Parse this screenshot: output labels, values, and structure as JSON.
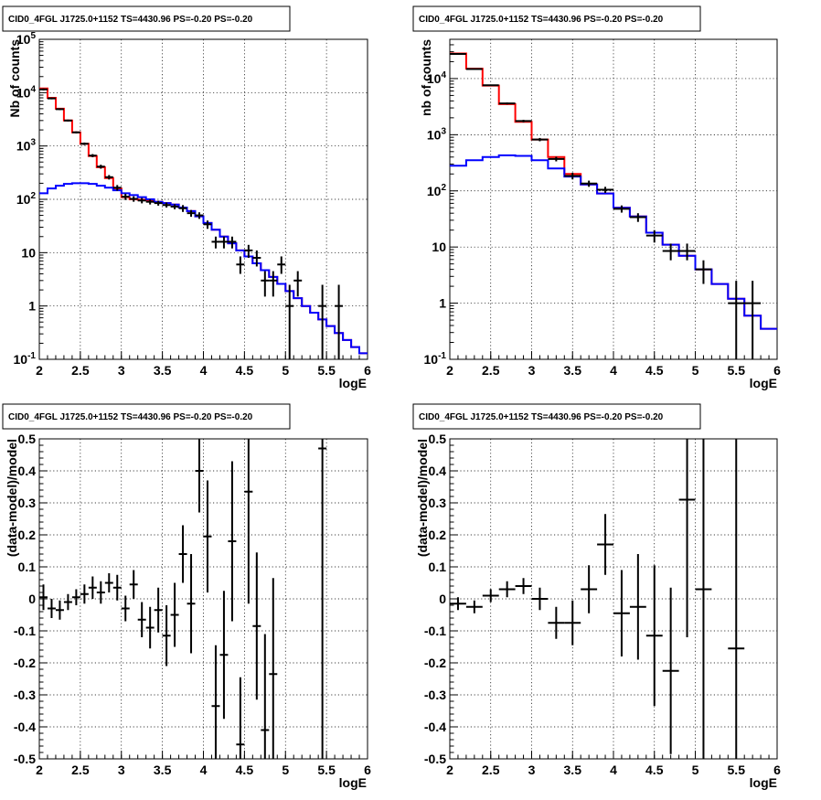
{
  "chart_data": [
    {
      "type": "step-histogram",
      "title": "CID0_4FGL J1725.0+1152 TS=4430.96 PS=-0.20 PS=-0.20",
      "xlabel": "logE",
      "ylabel": "Nb of counts",
      "xlim": [
        2,
        6
      ],
      "ylim": [
        0.1,
        100000
      ],
      "yscale": "log",
      "grid": true,
      "x_ticks": [
        "2",
        "2.5",
        "3",
        "3.5",
        "4",
        "4.5",
        "5",
        "5.5",
        "6"
      ],
      "y_ticks": [
        {
          "v": 0.1,
          "t": "10",
          "sup": "-1"
        },
        {
          "v": 1,
          "t": "1"
        },
        {
          "v": 10,
          "t": "10"
        },
        {
          "v": 100,
          "t": "10",
          "sup": "2"
        },
        {
          "v": 1000,
          "t": "10",
          "sup": "3"
        },
        {
          "v": 10000,
          "t": "10",
          "sup": "4"
        },
        {
          "v": 100000,
          "t": "10",
          "sup": "5"
        }
      ],
      "edges": [
        2.0,
        2.1,
        2.2,
        2.3,
        2.4,
        2.5,
        2.6,
        2.7,
        2.8,
        2.9,
        3.0,
        3.1,
        3.2,
        3.3,
        3.4,
        3.5,
        3.6,
        3.7,
        3.8,
        3.9,
        4.0,
        4.1,
        4.2,
        4.3,
        4.4,
        4.5,
        4.6,
        4.7,
        4.8,
        4.9,
        5.0,
        5.1,
        5.2,
        5.3,
        5.4,
        5.5,
        5.6,
        5.7,
        5.8,
        5.9,
        6.0
      ],
      "series": [
        {
          "color": "#ff0000",
          "values": [
            12000,
            8000,
            5000,
            3000,
            1800,
            1100,
            650,
            400,
            250,
            160,
            110,
            100,
            98,
            96,
            90,
            85,
            80,
            70,
            60,
            48,
            36,
            27,
            20,
            15,
            11,
            8.5,
            6.3,
            4.7,
            3.5,
            2.6,
            1.9,
            1.4,
            1.0,
            0.75,
            0.56,
            0.42,
            0.31,
            0.23,
            0.17,
            0.13
          ]
        },
        {
          "color": "#0000ff",
          "values": [
            130,
            160,
            180,
            195,
            200,
            200,
            195,
            180,
            165,
            148,
            130,
            120,
            110,
            100,
            90,
            85,
            80,
            70,
            60,
            48,
            36,
            27,
            20,
            15,
            11,
            8.5,
            6.3,
            4.7,
            3.5,
            2.6,
            1.9,
            1.4,
            1.0,
            0.75,
            0.56,
            0.42,
            0.31,
            0.23,
            0.17,
            0.13
          ]
        }
      ],
      "data_points": [
        {
          "x": 2.05,
          "y": 11500,
          "lo": 11000,
          "hi": 12000
        },
        {
          "x": 2.15,
          "y": 7800,
          "lo": 7500,
          "hi": 8100
        },
        {
          "x": 2.25,
          "y": 4900,
          "lo": 4700,
          "hi": 5100
        },
        {
          "x": 2.35,
          "y": 3000,
          "lo": 2880,
          "hi": 3120
        },
        {
          "x": 2.45,
          "y": 1800,
          "lo": 1720,
          "hi": 1880
        },
        {
          "x": 2.55,
          "y": 1100,
          "lo": 1040,
          "hi": 1160
        },
        {
          "x": 2.65,
          "y": 660,
          "lo": 615,
          "hi": 705
        },
        {
          "x": 2.75,
          "y": 410,
          "lo": 375,
          "hi": 445
        },
        {
          "x": 2.85,
          "y": 260,
          "lo": 235,
          "hi": 285
        },
        {
          "x": 2.95,
          "y": 165,
          "lo": 145,
          "hi": 185
        },
        {
          "x": 3.05,
          "y": 112,
          "lo": 97,
          "hi": 127
        },
        {
          "x": 3.15,
          "y": 102,
          "lo": 90,
          "hi": 114
        },
        {
          "x": 3.25,
          "y": 95,
          "lo": 84,
          "hi": 106
        },
        {
          "x": 3.35,
          "y": 90,
          "lo": 80,
          "hi": 100
        },
        {
          "x": 3.45,
          "y": 85,
          "lo": 76,
          "hi": 94
        },
        {
          "x": 3.55,
          "y": 78,
          "lo": 70,
          "hi": 87
        },
        {
          "x": 3.65,
          "y": 73,
          "lo": 65,
          "hi": 81
        },
        {
          "x": 3.75,
          "y": 68,
          "lo": 58,
          "hi": 78
        },
        {
          "x": 3.85,
          "y": 55,
          "lo": 47,
          "hi": 63
        },
        {
          "x": 3.95,
          "y": 50,
          "lo": 43,
          "hi": 57
        },
        {
          "x": 4.05,
          "y": 34,
          "lo": 28,
          "hi": 40
        },
        {
          "x": 4.15,
          "y": 16,
          "lo": 12,
          "hi": 20
        },
        {
          "x": 4.25,
          "y": 16,
          "lo": 12,
          "hi": 20
        },
        {
          "x": 4.35,
          "y": 16,
          "lo": 12,
          "hi": 20
        },
        {
          "x": 4.45,
          "y": 6,
          "lo": 4,
          "hi": 8.5
        },
        {
          "x": 4.55,
          "y": 11,
          "lo": 8,
          "hi": 14
        },
        {
          "x": 4.65,
          "y": 8,
          "lo": 5.5,
          "hi": 11
        },
        {
          "x": 4.75,
          "y": 3,
          "lo": 1.5,
          "hi": 4.5
        },
        {
          "x": 4.85,
          "y": 3,
          "lo": 1.5,
          "hi": 4.5
        },
        {
          "x": 4.95,
          "y": 6,
          "lo": 4,
          "hi": 8.5
        },
        {
          "x": 5.05,
          "y": 1,
          "lo": 0.1,
          "hi": 2.5
        },
        {
          "x": 5.15,
          "y": 3,
          "lo": 1.5,
          "hi": 4.5
        },
        {
          "x": 5.45,
          "y": 1,
          "lo": 0.1,
          "hi": 2.5
        },
        {
          "x": 5.65,
          "y": 1,
          "lo": 0.1,
          "hi": 2.5
        }
      ]
    },
    {
      "type": "step-histogram",
      "title": "CID0_4FGL J1725.0+1152 TS=4430.96 PS=-0.20 PS=-0.20",
      "xlabel": "logE",
      "ylabel": "nb of counts",
      "xlim": [
        2,
        6
      ],
      "ylim": [
        0.1,
        50000
      ],
      "yscale": "log",
      "grid": true,
      "x_ticks": [
        "2",
        "2.5",
        "3",
        "3.5",
        "4",
        "4.5",
        "5",
        "5.5",
        "6"
      ],
      "y_ticks": [
        {
          "v": 0.1,
          "t": "10",
          "sup": "-1"
        },
        {
          "v": 1,
          "t": "1"
        },
        {
          "v": 10,
          "t": "10"
        },
        {
          "v": 100,
          "t": "10",
          "sup": "2"
        },
        {
          "v": 1000,
          "t": "10",
          "sup": "3"
        },
        {
          "v": 10000,
          "t": "10",
          "sup": "4"
        }
      ],
      "edges": [
        2.0,
        2.2,
        2.4,
        2.6,
        2.8,
        3.0,
        3.2,
        3.4,
        3.6,
        3.8,
        4.0,
        4.2,
        4.4,
        4.6,
        4.8,
        5.0,
        5.2,
        5.4,
        5.6,
        5.8,
        6.0
      ],
      "series": [
        {
          "color": "#ff0000",
          "values": [
            28000,
            15000,
            7500,
            3500,
            1700,
            820,
            400,
            200,
            130,
            90,
            50,
            35,
            18,
            11,
            7,
            4,
            2.2,
            1.2,
            0.6,
            0.35
          ]
        },
        {
          "color": "#0000ff",
          "values": [
            280,
            350,
            400,
            430,
            420,
            350,
            250,
            180,
            130,
            90,
            50,
            35,
            18,
            11,
            7,
            4,
            2.2,
            1.2,
            0.6,
            0.35
          ]
        }
      ],
      "data_points": [
        {
          "x": 2.1,
          "y": 27500,
          "lo": 27000,
          "hi": 28000
        },
        {
          "x": 2.3,
          "y": 14800,
          "lo": 14500,
          "hi": 15100
        },
        {
          "x": 2.5,
          "y": 7600,
          "lo": 7400,
          "hi": 7800
        },
        {
          "x": 2.7,
          "y": 3600,
          "lo": 3450,
          "hi": 3750
        },
        {
          "x": 2.9,
          "y": 1750,
          "lo": 1660,
          "hi": 1840
        },
        {
          "x": 3.1,
          "y": 820,
          "lo": 765,
          "hi": 875
        },
        {
          "x": 3.3,
          "y": 370,
          "lo": 335,
          "hi": 405
        },
        {
          "x": 3.5,
          "y": 185,
          "lo": 160,
          "hi": 210
        },
        {
          "x": 3.7,
          "y": 135,
          "lo": 118,
          "hi": 152
        },
        {
          "x": 3.9,
          "y": 105,
          "lo": 92,
          "hi": 118
        },
        {
          "x": 4.1,
          "y": 48,
          "lo": 41,
          "hi": 55
        },
        {
          "x": 4.3,
          "y": 34,
          "lo": 28,
          "hi": 40
        },
        {
          "x": 4.5,
          "y": 16,
          "lo": 12,
          "hi": 20
        },
        {
          "x": 4.7,
          "y": 8.5,
          "lo": 5.8,
          "hi": 11.5
        },
        {
          "x": 4.9,
          "y": 8.5,
          "lo": 5.8,
          "hi": 11.5
        },
        {
          "x": 5.1,
          "y": 4,
          "lo": 2.2,
          "hi": 5.8
        },
        {
          "x": 5.5,
          "y": 1,
          "lo": 0.1,
          "hi": 2.5
        },
        {
          "x": 5.7,
          "y": 1,
          "lo": 0.1,
          "hi": 2.5
        }
      ]
    },
    {
      "type": "errorbar",
      "title": "CID0_4FGL J1725.0+1152 TS=4430.96 PS=-0.20 PS=-0.20",
      "xlabel": "logE",
      "ylabel": "(data-model)/model",
      "xlim": [
        2,
        6
      ],
      "ylim": [
        -0.5,
        0.5
      ],
      "grid": true,
      "x_ticks": [
        "2",
        "2.5",
        "3",
        "3.5",
        "4",
        "4.5",
        "5",
        "5.5",
        "6"
      ],
      "y_ticks": [
        "-0.5",
        "-0.4",
        "-0.3",
        "-0.2",
        "-0.1",
        "0",
        "0.1",
        "0.2",
        "0.3",
        "0.4",
        "0.5"
      ],
      "half_width": 0.05,
      "data_points": [
        {
          "x": 2.05,
          "y": 0.005,
          "err": 0.04
        },
        {
          "x": 2.15,
          "y": -0.03,
          "err": 0.03
        },
        {
          "x": 2.25,
          "y": -0.035,
          "err": 0.03
        },
        {
          "x": 2.35,
          "y": -0.01,
          "err": 0.025
        },
        {
          "x": 2.45,
          "y": 0.005,
          "err": 0.025
        },
        {
          "x": 2.55,
          "y": 0.015,
          "err": 0.03
        },
        {
          "x": 2.65,
          "y": 0.035,
          "err": 0.035
        },
        {
          "x": 2.75,
          "y": 0.02,
          "err": 0.035
        },
        {
          "x": 2.85,
          "y": 0.05,
          "err": 0.03
        },
        {
          "x": 2.95,
          "y": 0.035,
          "err": 0.04
        },
        {
          "x": 3.05,
          "y": -0.03,
          "err": 0.04
        },
        {
          "x": 3.15,
          "y": 0.045,
          "err": 0.045
        },
        {
          "x": 3.25,
          "y": -0.065,
          "err": 0.055
        },
        {
          "x": 3.35,
          "y": -0.09,
          "err": 0.065
        },
        {
          "x": 3.45,
          "y": -0.035,
          "err": 0.07
        },
        {
          "x": 3.55,
          "y": -0.115,
          "err": 0.095
        },
        {
          "x": 3.65,
          "y": -0.05,
          "err": 0.1
        },
        {
          "x": 3.75,
          "y": 0.14,
          "err": 0.09
        },
        {
          "x": 3.85,
          "y": -0.015,
          "err": 0.155
        },
        {
          "x": 3.95,
          "y": 0.4,
          "err": 0.13
        },
        {
          "x": 4.05,
          "y": 0.195,
          "err": 0.175
        },
        {
          "x": 4.15,
          "y": -0.335,
          "err": 0.19
        },
        {
          "x": 4.25,
          "y": -0.175,
          "err": 0.2
        },
        {
          "x": 4.35,
          "y": 0.18,
          "err": 0.25
        },
        {
          "x": 4.45,
          "y": -0.455,
          "err": 0.21
        },
        {
          "x": 4.55,
          "y": 0.335,
          "err": 0.35
        },
        {
          "x": 4.65,
          "y": -0.085,
          "err": 0.23
        },
        {
          "x": 4.75,
          "y": -0.41,
          "err": 0.3
        },
        {
          "x": 4.85,
          "y": -0.235,
          "err": 0.3
        },
        {
          "x": 5.45,
          "y": 0.47,
          "err": 1.0
        }
      ]
    },
    {
      "type": "errorbar",
      "title": "CID0_4FGL J1725.0+1152 TS=4430.96 PS=-0.20 PS=-0.20",
      "xlabel": "logE",
      "ylabel": "(data-model)/model",
      "xlim": [
        2,
        6
      ],
      "ylim": [
        -0.5,
        0.5
      ],
      "grid": true,
      "x_ticks": [
        "2",
        "2.5",
        "3",
        "3.5",
        "4",
        "4.5",
        "5",
        "5.5",
        "6"
      ],
      "y_ticks": [
        "-0.5",
        "-0.4",
        "-0.3",
        "-0.2",
        "-0.1",
        "0",
        "0.1",
        "0.2",
        "0.3",
        "0.4",
        "0.5"
      ],
      "half_width": 0.1,
      "data_points": [
        {
          "x": 2.1,
          "y": -0.015,
          "err": 0.02
        },
        {
          "x": 2.3,
          "y": -0.025,
          "err": 0.02
        },
        {
          "x": 2.5,
          "y": 0.01,
          "err": 0.02
        },
        {
          "x": 2.7,
          "y": 0.03,
          "err": 0.025
        },
        {
          "x": 2.9,
          "y": 0.04,
          "err": 0.025
        },
        {
          "x": 3.1,
          "y": 0.0,
          "err": 0.035
        },
        {
          "x": 3.3,
          "y": -0.075,
          "err": 0.05
        },
        {
          "x": 3.5,
          "y": -0.075,
          "err": 0.07
        },
        {
          "x": 3.7,
          "y": 0.03,
          "err": 0.075
        },
        {
          "x": 3.9,
          "y": 0.17,
          "err": 0.095
        },
        {
          "x": 4.1,
          "y": -0.045,
          "err": 0.135
        },
        {
          "x": 4.3,
          "y": -0.025,
          "err": 0.165
        },
        {
          "x": 4.5,
          "y": -0.115,
          "err": 0.22
        },
        {
          "x": 4.7,
          "y": -0.225,
          "err": 0.26
        },
        {
          "x": 4.9,
          "y": 0.31,
          "err": 0.43
        },
        {
          "x": 5.1,
          "y": 0.03,
          "err": 0.9
        },
        {
          "x": 5.5,
          "y": -0.155,
          "err": 1.0
        }
      ]
    }
  ]
}
